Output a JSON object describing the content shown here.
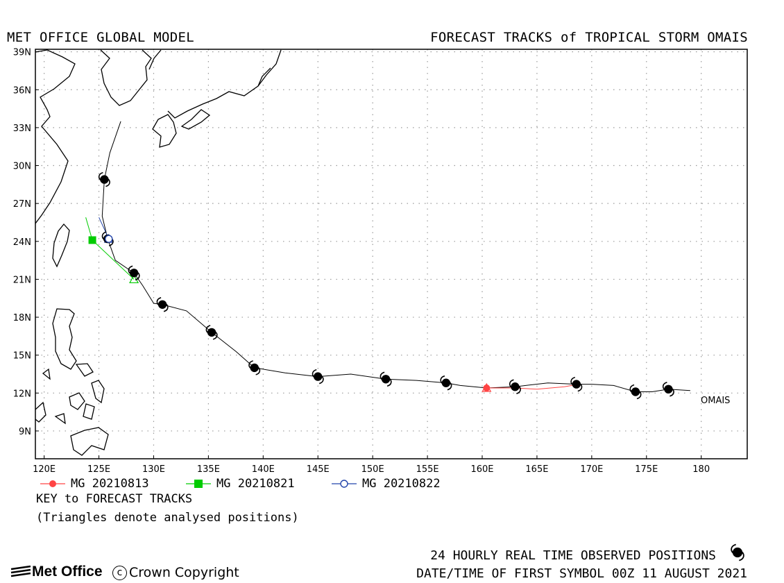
{
  "header": {
    "left_title": "MET OFFICE GLOBAL MODEL",
    "right_title": "FORECAST TRACKS of TROPICAL STORM OMAIS"
  },
  "map": {
    "lat_labels": [
      "39N",
      "36N",
      "33N",
      "30N",
      "27N",
      "24N",
      "21N",
      "18N",
      "15N",
      "12N",
      "9N"
    ],
    "lat_values": [
      39,
      36,
      33,
      30,
      27,
      24,
      21,
      18,
      15,
      12,
      9
    ],
    "lon_labels": [
      "120E",
      "125E",
      "130E",
      "135E",
      "140E",
      "145E",
      "150E",
      "155E",
      "160E",
      "165E",
      "170E",
      "175E",
      "180"
    ],
    "lon_values": [
      120,
      125,
      130,
      135,
      140,
      145,
      150,
      155,
      160,
      165,
      170,
      175,
      180
    ],
    "lon_range": [
      119.2,
      184.2
    ],
    "lat_range": [
      6.8,
      39.2
    ],
    "storm_label": "OMAIS",
    "observed_track": [
      [
        179.0,
        12.2
      ],
      [
        177.0,
        12.3
      ],
      [
        175.5,
        12.1
      ],
      [
        174.0,
        12.1
      ],
      [
        172.0,
        12.6
      ],
      [
        170.0,
        12.7
      ],
      [
        168.6,
        12.7
      ],
      [
        166.0,
        12.8
      ],
      [
        163.0,
        12.5
      ],
      [
        160.4,
        12.4
      ],
      [
        158.0,
        12.6
      ],
      [
        156.7,
        12.8
      ],
      [
        154.0,
        13.0
      ],
      [
        151.2,
        13.1
      ],
      [
        148.0,
        13.5
      ],
      [
        145.0,
        13.3
      ],
      [
        142.0,
        13.6
      ],
      [
        139.2,
        14.0
      ],
      [
        137.5,
        15.3
      ],
      [
        135.3,
        16.8
      ],
      [
        133.0,
        18.5
      ],
      [
        130.8,
        19.0
      ],
      [
        130.0,
        19.1
      ],
      [
        129.0,
        20.5
      ],
      [
        128.2,
        21.5
      ],
      [
        126.5,
        22.5
      ],
      [
        125.8,
        24.2
      ],
      [
        125.3,
        26.0
      ],
      [
        125.5,
        28.9
      ],
      [
        126.0,
        31.0
      ],
      [
        127.0,
        33.5
      ]
    ],
    "observed_positions": [
      [
        177.0,
        12.3
      ],
      [
        174.0,
        12.1
      ],
      [
        168.6,
        12.7
      ],
      [
        163.0,
        12.5
      ],
      [
        156.7,
        12.8
      ],
      [
        151.2,
        13.1
      ],
      [
        145.0,
        13.3
      ],
      [
        139.2,
        14.0
      ],
      [
        135.3,
        16.8
      ],
      [
        130.8,
        19.0
      ],
      [
        128.2,
        21.5
      ],
      [
        125.8,
        24.2
      ],
      [
        125.5,
        28.9
      ]
    ],
    "forecasts": [
      {
        "name": "MG 20210813",
        "color": "#ff4444",
        "marker": "circle",
        "track": [
          [
            160.4,
            12.4
          ],
          [
            163.0,
            12.4
          ],
          [
            165.0,
            12.3
          ],
          [
            167.5,
            12.5
          ],
          [
            168.8,
            12.7
          ]
        ],
        "analysed": [
          160.4,
          12.4
        ],
        "symbols": [
          [
            160.4,
            12.4
          ]
        ]
      },
      {
        "name": "MG 20210821",
        "color": "#00cc00",
        "marker": "square",
        "track": [
          [
            128.2,
            21.0
          ],
          [
            124.4,
            24.1
          ],
          [
            123.8,
            25.9
          ]
        ],
        "analysed": [
          128.2,
          21.0
        ],
        "symbols": [
          [
            124.4,
            24.1
          ]
        ]
      },
      {
        "name": "MG 20210822",
        "color": "#2244aa",
        "marker": "circle-open",
        "track": [
          [
            125.9,
            24.2
          ],
          [
            125.0,
            25.9
          ]
        ],
        "analysed": [
          125.9,
          24.2
        ],
        "symbols": [
          [
            125.9,
            24.2
          ]
        ]
      }
    ]
  },
  "legend": {
    "entries": [
      {
        "label": "MG 20210813",
        "color": "#ff4444",
        "marker": "circle"
      },
      {
        "label": "MG 20210821",
        "color": "#00cc00",
        "marker": "square"
      },
      {
        "label": "MG 20210822",
        "color": "#2244aa",
        "marker": "circle-open"
      }
    ],
    "key_title": "KEY to FORECAST TRACKS",
    "key_note": "(Triangles denote analysed positions)"
  },
  "footer": {
    "observed_text": "24 HOURLY REAL TIME OBSERVED POSITIONS",
    "first_symbol_text": "DATE/TIME OF FIRST SYMBOL 00Z 11 AUGUST 2021",
    "logo_text": "Met Office",
    "copyright_text": "Crown Copyright"
  },
  "icons": {
    "storm": "tropical-storm-icon",
    "logo": "met-office-logo-icon",
    "copyright": "copyright-icon"
  }
}
